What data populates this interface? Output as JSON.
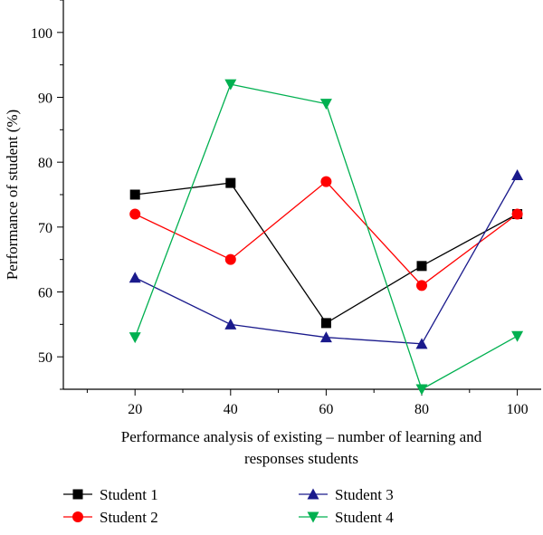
{
  "chart_data": {
    "type": "line",
    "title": "",
    "xlabel_lines": [
      "Performance analysis of existing – number of learning and",
      "responses students"
    ],
    "ylabel": "Performance of student (%)",
    "x": [
      20,
      40,
      60,
      80,
      100
    ],
    "x_ticks": [
      "20",
      "40",
      "60",
      "80",
      "100"
    ],
    "y_ticks": [
      "50",
      "60",
      "70",
      "80",
      "90",
      "100"
    ],
    "xlim": [
      5,
      105
    ],
    "ylim": [
      45,
      105
    ],
    "grid": false,
    "legend_position": "bottom",
    "series": [
      {
        "name": "Student 1",
        "values": [
          75,
          76.8,
          55.2,
          64,
          72
        ],
        "color": "#000000",
        "marker": "square"
      },
      {
        "name": "Student 2",
        "values": [
          72,
          65,
          77,
          61,
          72
        ],
        "color": "#ff0000",
        "marker": "circle"
      },
      {
        "name": "Student 3",
        "values": [
          62.2,
          55,
          53,
          52,
          78
        ],
        "color": "#1a1a8c",
        "marker": "triangle-up"
      },
      {
        "name": "Student 4",
        "values": [
          53,
          92,
          89,
          45,
          53.2
        ],
        "color": "#00b050",
        "marker": "triangle-down"
      }
    ]
  }
}
